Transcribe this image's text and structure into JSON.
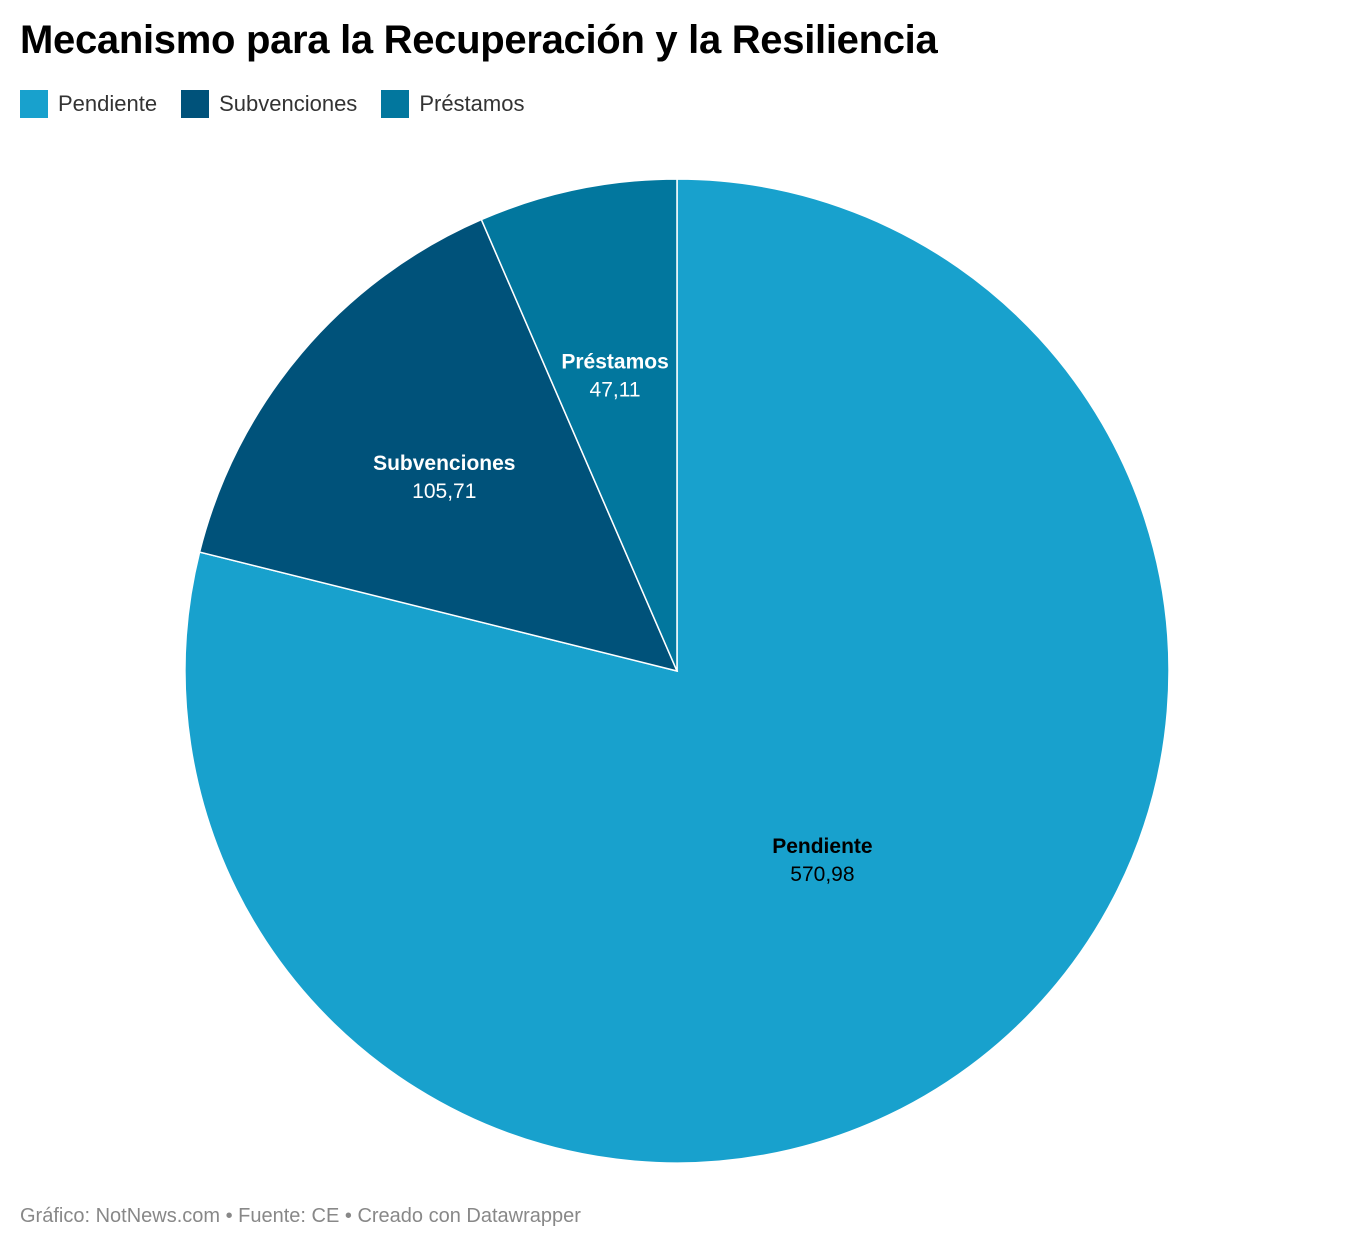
{
  "header": {
    "title": "Mecanismo para la Recuperación y la Resiliencia"
  },
  "legend": [
    {
      "label": "Pendiente",
      "color": "#18a1cd"
    },
    {
      "label": "Subvenciones",
      "color": "#00527a"
    },
    {
      "label": "Préstamos",
      "color": "#02779e"
    }
  ],
  "chart_data": {
    "type": "pie",
    "title": "Mecanismo para la Recuperación y la Resiliencia",
    "slices": [
      {
        "label": "Pendiente",
        "value": 570.98,
        "display_value": "570,98",
        "color": "#18a1cd",
        "label_color": "#000000"
      },
      {
        "label": "Subvenciones",
        "value": 105.71,
        "display_value": "105,71",
        "color": "#00527a",
        "label_color": "#ffffff"
      },
      {
        "label": "Préstamos",
        "value": 47.11,
        "display_value": "47,11",
        "color": "#02779e",
        "label_color": "#ffffff"
      }
    ],
    "legend_position": "top-left"
  },
  "footer": {
    "text": "Gráfico: NotNews.com • Fuente: CE • Creado con Datawrapper"
  }
}
